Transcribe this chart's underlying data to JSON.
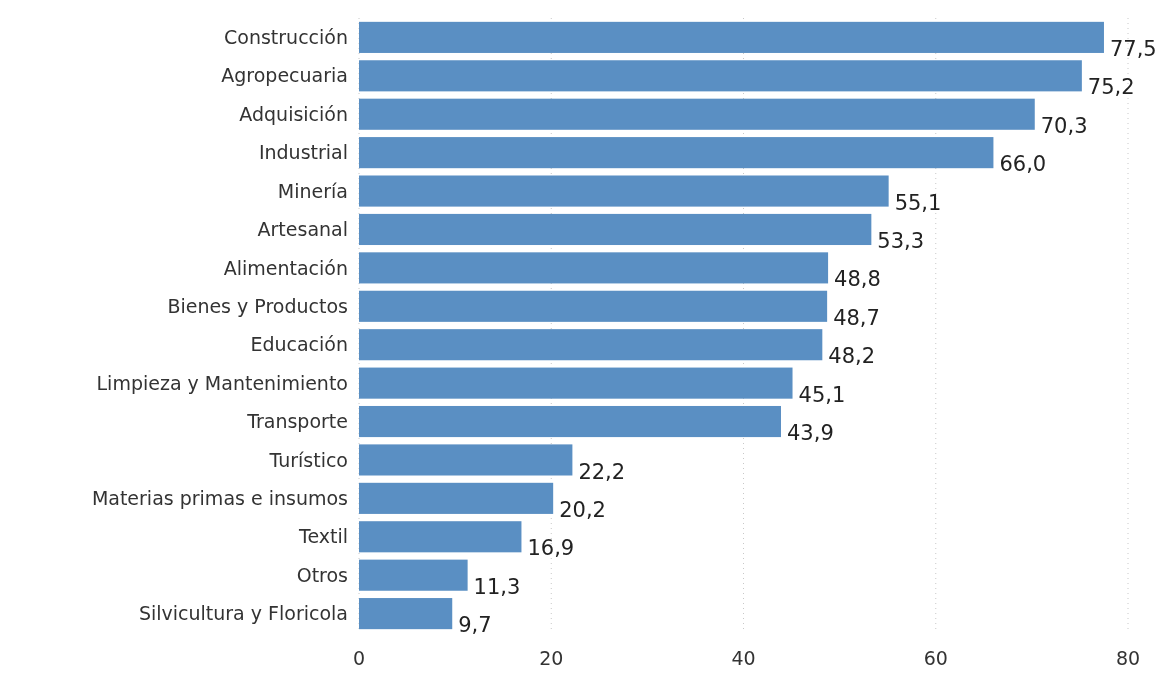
{
  "chart_data": {
    "type": "bar",
    "orientation": "horizontal",
    "categories": [
      "Construcción",
      "Agropecuaria",
      "Adquisición",
      "Industrial",
      "Minería",
      "Artesanal",
      "Alimentación",
      "Bienes y Productos",
      "Educación",
      "Limpieza y Mantenimiento",
      "Transporte",
      "Turístico",
      "Materias primas e insumos",
      "Textil",
      "Otros",
      "Silvicultura y Floricola"
    ],
    "values": [
      77.5,
      75.2,
      70.3,
      66.0,
      55.1,
      53.3,
      48.8,
      48.7,
      48.2,
      45.1,
      43.9,
      22.2,
      20.2,
      16.9,
      11.3,
      9.7
    ],
    "value_labels": [
      "77,5",
      "75,2",
      "70,3",
      "66,0",
      "55,1",
      "53,3",
      "48,8",
      "48,7",
      "48,2",
      "45,1",
      "43,9",
      "22,2",
      "20,2",
      "16,9",
      "11,3",
      "9,7"
    ],
    "color": "#5a8fc3",
    "xlim": [
      0,
      80
    ],
    "xticks": [
      0,
      20,
      40,
      60,
      80
    ],
    "grid": "x"
  }
}
